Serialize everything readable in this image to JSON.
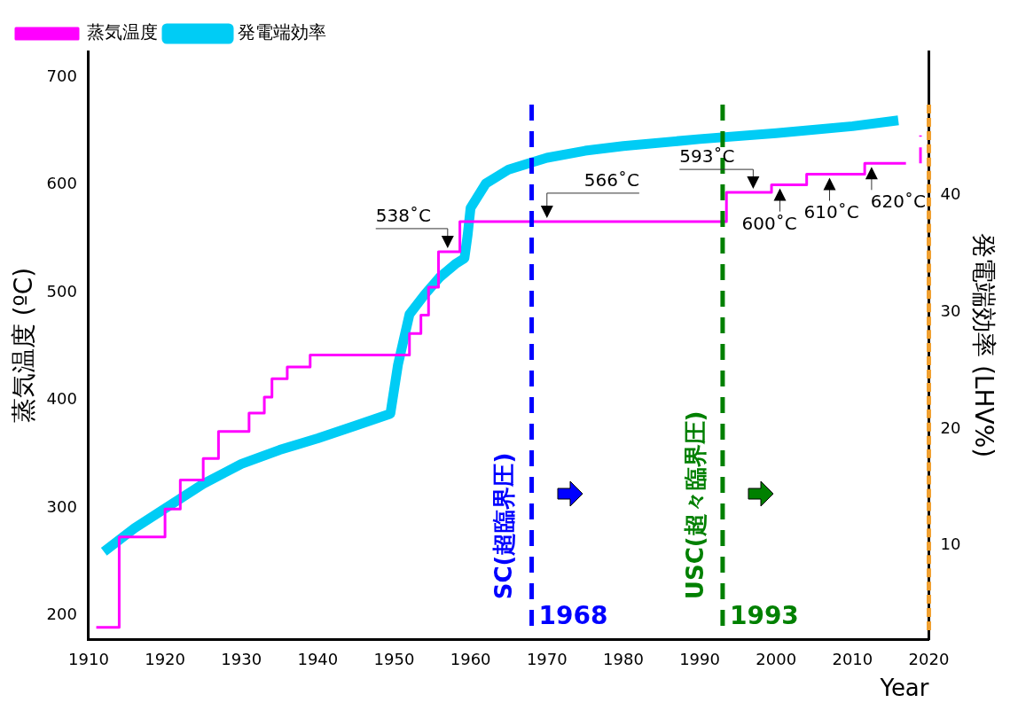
{
  "chart_data": {
    "type": "line",
    "xlabel": "Year",
    "ylabel": "蒸気温度 (ºC)",
    "y2label": "発電端効率 (LHV%)",
    "xlim": [
      1910,
      2020
    ],
    "xticks": [
      1910,
      1920,
      1930,
      1940,
      1950,
      1960,
      1970,
      1980,
      1990,
      2000,
      2010,
      2020
    ],
    "ylim": [
      178,
      724
    ],
    "yticks": [
      200,
      300,
      400,
      500,
      600,
      700
    ],
    "y2lim": [
      2,
      52.3
    ],
    "y2ticks": [
      10,
      20,
      30,
      40
    ],
    "legend": "top left",
    "series": [
      {
        "name": "発電端効率",
        "type": "line",
        "axis": "y2",
        "color": "#00ccf5",
        "x": [
          1912,
          1916,
          1920,
          1925,
          1930,
          1935,
          1940,
          1945,
          1949.5,
          1950.5,
          1952,
          1954,
          1956,
          1958,
          1959.2,
          1959.6,
          1960,
          1962,
          1965,
          1968,
          1970,
          1975,
          1980,
          1990,
          2000,
          2010,
          2016
        ],
        "values": [
          9.5,
          11.5,
          13.2,
          15.3,
          17.0,
          18.2,
          19.2,
          20.3,
          21.3,
          25.5,
          29.8,
          31.5,
          33,
          34.1,
          34.6,
          36.5,
          38.9,
          41.0,
          42.2,
          42.8,
          43.2,
          43.8,
          44.2,
          44.8,
          45.3,
          45.9,
          46.4
        ]
      },
      {
        "name": "蒸気温度",
        "type": "step",
        "color": "#ff00ff",
        "x": [
          1911,
          1914,
          1920,
          1922,
          1925,
          1927,
          1931,
          1933,
          1934,
          1936,
          1939,
          1952,
          1953.5,
          1954.5,
          1955.8,
          1958.6,
          1993.5,
          1999.4,
          2004,
          2011.6,
          2017
        ],
        "values": [
          189,
          273,
          299,
          326,
          346,
          371,
          388,
          403,
          420,
          431,
          442,
          462,
          479,
          505,
          538,
          566,
          593,
          600,
          610,
          620,
          620
        ]
      },
      {
        "type": "line",
        "color": "#ff00ff",
        "line_style": "dashed",
        "x": [
          2018.9,
          2018.9
        ],
        "values": [
          620,
          646
        ]
      }
    ],
    "ref_lines": [
      {
        "axis": "x",
        "value": 1968,
        "label": "1968",
        "color": "#0000ff",
        "line_style": "dashed"
      },
      {
        "axis": "x",
        "value": 1993,
        "label": "1993",
        "color": "#008000",
        "line_style": "dashed"
      }
    ],
    "annotations": [
      {
        "text": "538˚C",
        "x": 1957,
        "y": 538
      },
      {
        "text": "566˚C",
        "x": 1970,
        "y": 566
      },
      {
        "text": "593˚C",
        "x": 1997,
        "y": 593
      },
      {
        "text": "600˚C",
        "x": 2000.5,
        "y": 600
      },
      {
        "text": "610˚C",
        "x": 2007,
        "y": 610
      },
      {
        "text": "620˚C",
        "x": 2012.5,
        "y": 620
      },
      {
        "text": "SC(超臨界圧)",
        "x": 1968
      },
      {
        "text": "USC(超々臨界圧)",
        "x": 1993
      }
    ]
  }
}
